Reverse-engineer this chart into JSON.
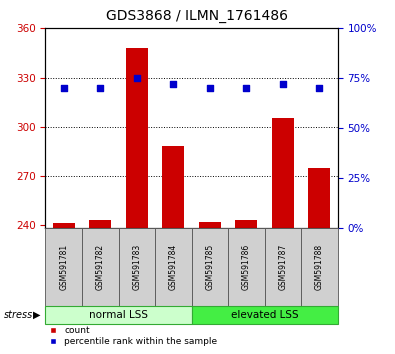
{
  "title": "GDS3868 / ILMN_1761486",
  "categories": [
    "GSM591781",
    "GSM591782",
    "GSM591783",
    "GSM591784",
    "GSM591785",
    "GSM591786",
    "GSM591787",
    "GSM591788"
  ],
  "counts": [
    241,
    243,
    348,
    288,
    242,
    243,
    305,
    275
  ],
  "percentiles": [
    70,
    70,
    75,
    72,
    70,
    70,
    72,
    70
  ],
  "ylim_left": [
    238,
    360
  ],
  "ylim_right": [
    0,
    100
  ],
  "yticks_left": [
    240,
    270,
    300,
    330,
    360
  ],
  "yticks_right": [
    0,
    25,
    50,
    75,
    100
  ],
  "group1_label": "normal LSS",
  "group2_label": "elevated LSS",
  "group1_color": "#ccffcc",
  "group2_color": "#44ee44",
  "bar_color": "#cc0000",
  "dot_color": "#0000cc",
  "stress_label": "stress",
  "legend_count": "count",
  "legend_percentile": "percentile rank within the sample",
  "title_fontsize": 10,
  "tick_fontsize": 7.5,
  "bar_width": 0.6,
  "left_tick_color": "#cc0000",
  "right_tick_color": "#0000cc",
  "gray_box_color": "#d0d0d0",
  "gray_box_edge": "#888888"
}
